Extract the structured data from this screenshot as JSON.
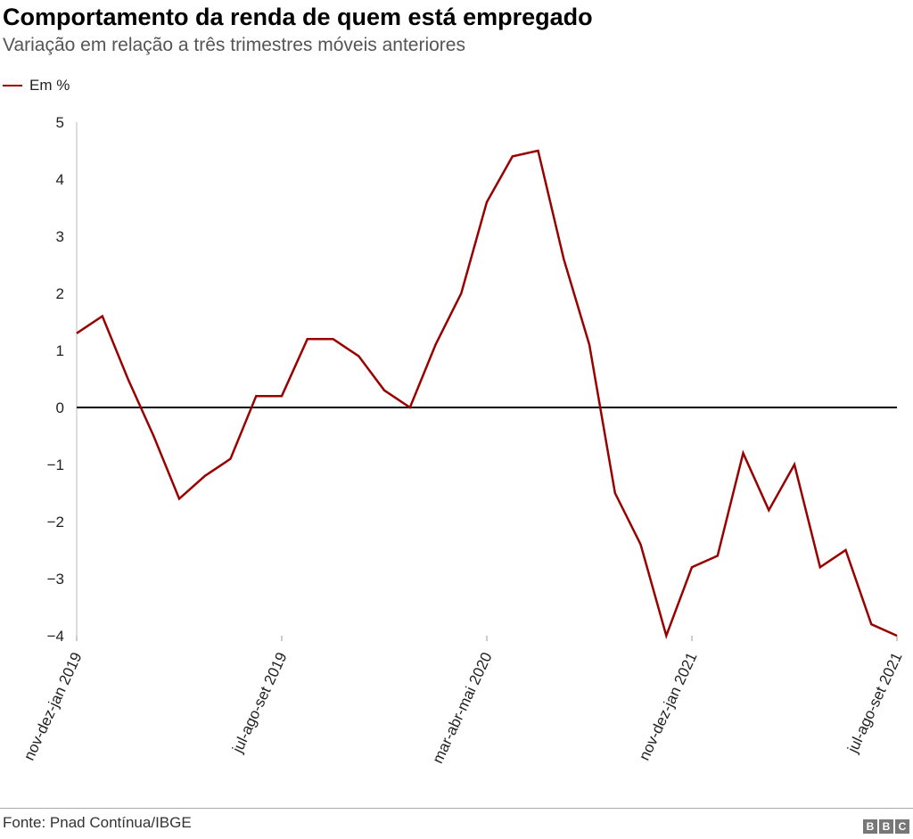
{
  "title": "Comportamento da renda de quem está empregado",
  "subtitle": "Variação em relação a três trimestres móveis anteriores",
  "source": "Fonte: Pnad Contínua/IBGE",
  "logo": "BBC",
  "chart_data": {
    "type": "line",
    "title": "Comportamento da renda de quem está empregado",
    "subtitle": "Variação em relação a três trimestres móveis anteriores",
    "xlabel": "",
    "ylabel": "",
    "ylim": [
      -4,
      5
    ],
    "yticks": [
      5,
      4,
      3,
      2,
      1,
      0,
      -1,
      -2,
      -3,
      -4
    ],
    "ytick_labels": [
      "5",
      "4",
      "3",
      "2",
      "1",
      "0",
      "−1",
      "−2",
      "−3",
      "−4"
    ],
    "xtick_labels": [
      {
        "index": 0,
        "label": "nov-dez-jan 2019"
      },
      {
        "index": 8,
        "label": "jul-ago-set 2019"
      },
      {
        "index": 16,
        "label": "mar-abr-mai 2020"
      },
      {
        "index": 24,
        "label": "nov-dez-jan 2021"
      },
      {
        "index": 32,
        "label": "jul-ago-set 2021"
      }
    ],
    "grid": false,
    "legend_position": "top-left",
    "series": [
      {
        "name": "Em %",
        "color": "#990000",
        "values": [
          1.3,
          1.6,
          0.5,
          -0.5,
          -1.6,
          -1.2,
          -0.9,
          0.2,
          0.2,
          1.2,
          1.2,
          0.9,
          0.3,
          0.0,
          1.1,
          2.0,
          3.6,
          4.4,
          4.5,
          2.6,
          1.1,
          -1.5,
          -2.4,
          -4.0,
          -2.8,
          -2.6,
          -0.8,
          -1.8,
          -1.0,
          -2.8,
          -2.5,
          -3.8,
          -4.0
        ]
      }
    ]
  }
}
